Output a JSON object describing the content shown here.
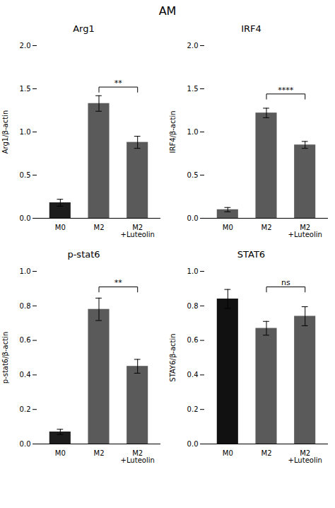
{
  "title": "AM",
  "chart_data": [
    {
      "type": "bar",
      "title": "Arg1",
      "ylabel": "Arg1/β-actin",
      "categories": [
        "M0",
        "M2",
        "M2\n+Luteolin"
      ],
      "values": [
        0.18,
        1.33,
        0.88
      ],
      "errors": [
        0.04,
        0.09,
        0.07
      ],
      "colors": [
        "#1c1c1c",
        "#5a5a5a",
        "#5a5a5a"
      ],
      "ylim": [
        0,
        2.0
      ],
      "yticks": [
        {
          "value": 0,
          "label": "0.0"
        },
        0.5,
        {
          "value": 1,
          "label": "1.0"
        },
        1.5,
        {
          "value": 2,
          "label": "2.0"
        }
      ],
      "grid": false,
      "annotations": [
        {
          "text": "**",
          "from": "M2",
          "to": "M2\n+Luteolin",
          "y": 1.52
        }
      ]
    },
    {
      "type": "bar",
      "title": "IRF4",
      "ylabel": "IRF4/β-actin",
      "categories": [
        "M0",
        "M2",
        "M2\n+Luteolin"
      ],
      "values": [
        0.1,
        1.22,
        0.85
      ],
      "errors": [
        0.025,
        0.055,
        0.04
      ],
      "colors": [
        "#5a5a5a",
        "#5a5a5a",
        "#5a5a5a"
      ],
      "ylim": [
        0,
        2.0
      ],
      "yticks": [
        {
          "value": 0,
          "label": "0.0"
        },
        0.5,
        {
          "value": 1,
          "label": "1.0"
        },
        1.5,
        {
          "value": 2,
          "label": "2.0"
        }
      ],
      "grid": false,
      "annotations": [
        {
          "text": "****",
          "from": "M2",
          "to": "M2\n+Luteolin",
          "y": 1.44
        }
      ]
    },
    {
      "type": "bar",
      "title": "p-stat6",
      "ylabel": "p-stat6/β-actin",
      "categories": [
        "M0",
        "M2",
        "M2\n+Luteolin"
      ],
      "values": [
        0.07,
        0.78,
        0.45
      ],
      "errors": [
        0.015,
        0.065,
        0.04
      ],
      "colors": [
        "#1c1c1c",
        "#5a5a5a",
        "#5a5a5a"
      ],
      "ylim": [
        0,
        1.0
      ],
      "yticks": [
        {
          "value": 0,
          "label": "0.0"
        },
        0.2,
        0.4,
        0.6,
        0.8,
        {
          "value": 1,
          "label": "1.0"
        }
      ],
      "grid": false,
      "annotations": [
        {
          "text": "**",
          "from": "M2",
          "to": "M2\n+Luteolin",
          "y": 0.91
        }
      ]
    },
    {
      "type": "bar",
      "title": "STAT6",
      "ylabel": "STAY6/β-actin",
      "categories": [
        "M0",
        "M2",
        "M2\n+Luteolin"
      ],
      "values": [
        0.84,
        0.67,
        0.74
      ],
      "errors": [
        0.055,
        0.04,
        0.055
      ],
      "colors": [
        "#111111",
        "#5a5a5a",
        "#5a5a5a"
      ],
      "ylim": [
        0,
        1.0
      ],
      "yticks": [
        {
          "value": 0,
          "label": "0.0"
        },
        0.2,
        0.4,
        0.6,
        0.8,
        {
          "value": 1,
          "label": "1.0"
        }
      ],
      "grid": false,
      "annotations": [
        {
          "text": "ns",
          "from": "M2",
          "to": "M2\n+Luteolin",
          "y": 0.91
        }
      ]
    }
  ]
}
